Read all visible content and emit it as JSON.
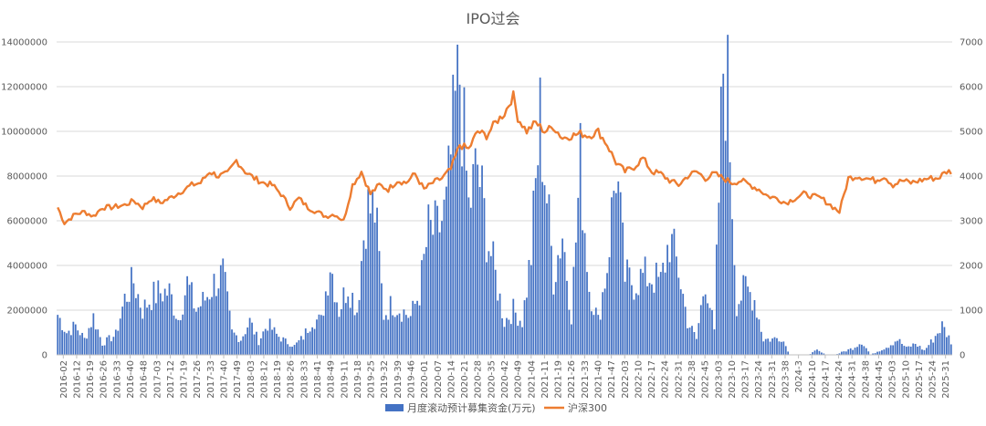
{
  "chart_data": {
    "type": "bar+line",
    "title": "IPO过会",
    "colors": {
      "bar": "#4472C4",
      "line": "#ED7D31",
      "grid": "#D9D9D9"
    },
    "y_left": {
      "min": 0,
      "max": 14000000,
      "ticks": [
        "0",
        "2000000",
        "4000000",
        "6000000",
        "8000000",
        "10000000",
        "12000000",
        "14000000"
      ]
    },
    "y_right": {
      "min": 0,
      "max": 7000,
      "ticks": [
        "0",
        "1000",
        "2000",
        "3000",
        "4000",
        "5000",
        "6000",
        "7000"
      ]
    },
    "x_tick_labels": [
      "2016-02",
      "2016-12",
      "2016-19",
      "2016-26",
      "2016-33",
      "2016-40",
      "2016-48",
      "2017-03",
      "2017-12",
      "2017-19",
      "2017-26",
      "2017-33",
      "2017-40",
      "2017-49",
      "2018-03",
      "2018-12",
      "2018-19",
      "2018-26",
      "2018-33",
      "2018-41",
      "2018-49",
      "2019-11",
      "2019-18",
      "2019-25",
      "2019-32",
      "2019-39",
      "2019-46",
      "2020-01",
      "2020-07",
      "2020-14",
      "2020-21",
      "2020-28",
      "2020-35",
      "2020-42",
      "2020-49",
      "2021-04",
      "2021-11",
      "2021-19",
      "2021-26",
      "2021-33",
      "2021-40",
      "2021-47",
      "2022-03",
      "2022-10",
      "2022-17",
      "2022-24",
      "2022-31",
      "2022-38",
      "2022-45",
      "2023-03",
      "2023-10",
      "2023-17",
      "2023-24",
      "2023-31",
      "2023-38",
      "2024-3",
      "2024-10",
      "2024-17",
      "2024-24",
      "2024-31",
      "2024-38",
      "2024-45",
      "2025-03",
      "2025-10",
      "2025-17",
      "2025-24",
      "2025-31"
    ],
    "legend_position": "bottom",
    "series": [
      {
        "name": "月度滚动预计募集资金(万元)",
        "type": "bar",
        "axis": "left",
        "anchor_values": [
          [
            0,
            1800000
          ],
          [
            4,
            1000000
          ],
          [
            8,
            1300000
          ],
          [
            12,
            700000
          ],
          [
            16,
            1700000
          ],
          [
            20,
            500000
          ],
          [
            26,
            900000
          ],
          [
            30,
            2500000
          ],
          [
            34,
            3300000
          ],
          [
            38,
            2000000
          ],
          [
            42,
            2600000
          ],
          [
            46,
            2800000
          ],
          [
            50,
            2800000
          ],
          [
            54,
            1600000
          ],
          [
            58,
            3200000
          ],
          [
            62,
            2000000
          ],
          [
            66,
            2500000
          ],
          [
            70,
            3200000
          ],
          [
            74,
            3600000
          ],
          [
            78,
            1000000
          ],
          [
            82,
            700000
          ],
          [
            86,
            1500000
          ],
          [
            90,
            600000
          ],
          [
            94,
            1400000
          ],
          [
            98,
            900000
          ],
          [
            102,
            600000
          ],
          [
            106,
            400000
          ],
          [
            110,
            800000
          ],
          [
            114,
            1600000
          ],
          [
            118,
            1500000
          ],
          [
            122,
            4200000
          ],
          [
            126,
            2000000
          ],
          [
            130,
            3200000
          ],
          [
            134,
            2000000
          ],
          [
            138,
            6500000
          ],
          [
            142,
            6500000
          ],
          [
            146,
            1800000
          ],
          [
            150,
            2300000
          ],
          [
            154,
            2000000
          ],
          [
            158,
            1700000
          ],
          [
            162,
            2800000
          ],
          [
            166,
            5500000
          ],
          [
            170,
            5500000
          ],
          [
            174,
            6500000
          ],
          [
            178,
            11000000
          ],
          [
            180,
            12500000
          ],
          [
            184,
            6500000
          ],
          [
            188,
            8500000
          ],
          [
            192,
            5500000
          ],
          [
            196,
            3500000
          ],
          [
            200,
            1500000
          ],
          [
            204,
            2000000
          ],
          [
            208,
            1500000
          ],
          [
            212,
            4500000
          ],
          [
            216,
            10500000
          ],
          [
            218,
            8300000
          ],
          [
            222,
            3500000
          ],
          [
            226,
            5500000
          ],
          [
            230,
            1800000
          ],
          [
            234,
            8500000
          ],
          [
            238,
            3000000
          ],
          [
            242,
            1500000
          ],
          [
            246,
            4000000
          ],
          [
            250,
            8500000
          ],
          [
            254,
            3500000
          ],
          [
            258,
            3200000
          ],
          [
            262,
            3500000
          ],
          [
            266,
            3500000
          ],
          [
            270,
            3200000
          ],
          [
            274,
            5200000
          ],
          [
            278,
            3800000
          ],
          [
            282,
            1500000
          ],
          [
            286,
            700000
          ],
          [
            290,
            3500000
          ],
          [
            294,
            1000000
          ],
          [
            298,
            13000000
          ],
          [
            300,
            11800000
          ],
          [
            304,
            2300000
          ],
          [
            308,
            3000000
          ],
          [
            312,
            2500000
          ],
          [
            316,
            700000
          ],
          [
            320,
            700000
          ],
          [
            324,
            800000
          ],
          [
            328,
            0
          ],
          [
            332,
            0
          ],
          [
            336,
            0
          ],
          [
            340,
            200000
          ],
          [
            344,
            0
          ],
          [
            348,
            0
          ],
          [
            352,
            150000
          ],
          [
            356,
            300000
          ],
          [
            360,
            600000
          ],
          [
            364,
            0
          ],
          [
            368,
            200000
          ],
          [
            372,
            400000
          ],
          [
            376,
            700000
          ],
          [
            380,
            300000
          ],
          [
            384,
            500000
          ],
          [
            388,
            200000
          ],
          [
            392,
            700000
          ],
          [
            396,
            1300000
          ],
          [
            400,
            600000
          ]
        ]
      },
      {
        "name": "沪深300",
        "type": "line",
        "axis": "right",
        "anchor_values": [
          [
            0,
            3300
          ],
          [
            3,
            2950
          ],
          [
            8,
            3150
          ],
          [
            12,
            3200
          ],
          [
            16,
            3100
          ],
          [
            20,
            3300
          ],
          [
            24,
            3300
          ],
          [
            30,
            3350
          ],
          [
            34,
            3450
          ],
          [
            38,
            3300
          ],
          [
            42,
            3500
          ],
          [
            46,
            3400
          ],
          [
            50,
            3500
          ],
          [
            55,
            3650
          ],
          [
            60,
            3800
          ],
          [
            64,
            3850
          ],
          [
            68,
            4100
          ],
          [
            72,
            4000
          ],
          [
            76,
            4050
          ],
          [
            80,
            4350
          ],
          [
            84,
            4100
          ],
          [
            88,
            3950
          ],
          [
            92,
            3850
          ],
          [
            96,
            3800
          ],
          [
            100,
            3600
          ],
          [
            104,
            3300
          ],
          [
            108,
            3500
          ],
          [
            112,
            3300
          ],
          [
            116,
            3200
          ],
          [
            120,
            3100
          ],
          [
            124,
            3150
          ],
          [
            128,
            3000
          ],
          [
            132,
            3800
          ],
          [
            136,
            4100
          ],
          [
            140,
            3600
          ],
          [
            144,
            3800
          ],
          [
            148,
            3700
          ],
          [
            152,
            3900
          ],
          [
            156,
            3850
          ],
          [
            160,
            4050
          ],
          [
            164,
            3700
          ],
          [
            168,
            3850
          ],
          [
            172,
            3950
          ],
          [
            176,
            4150
          ],
          [
            180,
            4700
          ],
          [
            184,
            4600
          ],
          [
            188,
            5000
          ],
          [
            192,
            4900
          ],
          [
            196,
            5200
          ],
          [
            200,
            5400
          ],
          [
            204,
            5800
          ],
          [
            206,
            5300
          ],
          [
            210,
            5000
          ],
          [
            214,
            5200
          ],
          [
            218,
            5000
          ],
          [
            222,
            5100
          ],
          [
            226,
            4850
          ],
          [
            230,
            4900
          ],
          [
            234,
            4950
          ],
          [
            238,
            4900
          ],
          [
            242,
            5000
          ],
          [
            246,
            4700
          ],
          [
            250,
            4300
          ],
          [
            254,
            4100
          ],
          [
            258,
            4200
          ],
          [
            262,
            4400
          ],
          [
            266,
            4100
          ],
          [
            270,
            4050
          ],
          [
            274,
            3900
          ],
          [
            278,
            3800
          ],
          [
            282,
            4000
          ],
          [
            286,
            4100
          ],
          [
            290,
            3950
          ],
          [
            294,
            4050
          ],
          [
            298,
            3950
          ],
          [
            302,
            3850
          ],
          [
            306,
            3900
          ],
          [
            310,
            3800
          ],
          [
            314,
            3700
          ],
          [
            318,
            3550
          ],
          [
            322,
            3500
          ],
          [
            326,
            3400
          ],
          [
            330,
            3500
          ],
          [
            334,
            3600
          ],
          [
            338,
            3550
          ],
          [
            342,
            3500
          ],
          [
            346,
            3350
          ],
          [
            350,
            3200
          ],
          [
            354,
            3950
          ],
          [
            358,
            4000
          ],
          [
            362,
            3950
          ],
          [
            366,
            3900
          ],
          [
            370,
            4000
          ],
          [
            374,
            3800
          ],
          [
            378,
            3900
          ],
          [
            382,
            3850
          ],
          [
            386,
            3900
          ],
          [
            390,
            3950
          ],
          [
            394,
            3950
          ],
          [
            398,
            4100
          ],
          [
            400,
            4100
          ]
        ]
      }
    ]
  }
}
